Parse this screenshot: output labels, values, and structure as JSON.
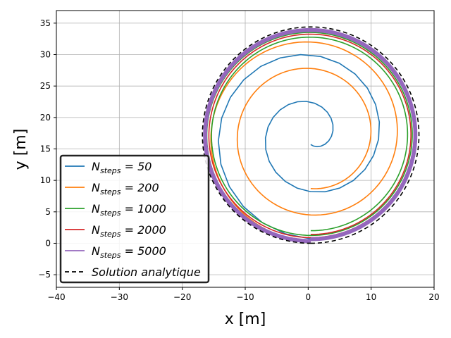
{
  "chart_data": {
    "type": "line",
    "title": "",
    "xlabel": "x [m]",
    "ylabel": "y [m]",
    "xlim": [
      -40,
      20
    ],
    "ylim": [
      -7,
      37
    ],
    "xticks": [
      -40,
      -30,
      -20,
      -10,
      0,
      10,
      20
    ],
    "yticks": [
      -5,
      0,
      5,
      10,
      15,
      20,
      25,
      30,
      35
    ],
    "xtick_labels": [
      "−40",
      "−30",
      "−20",
      "−10",
      "0",
      "10",
      "20"
    ],
    "ytick_labels": [
      "−5",
      "0",
      "5",
      "10",
      "15",
      "20",
      "25",
      "30",
      "35"
    ],
    "grid": true,
    "legend_position": "lower-left",
    "center": [
      0.4,
      17.2
    ],
    "series": [
      {
        "name_main": "N",
        "name_sub": "steps",
        "name_rest": " = 50",
        "color": "#1f77b4",
        "style": "solid",
        "r_start": 1.5,
        "r_end": 16.5,
        "turns": 2,
        "segments": 50
      },
      {
        "name_main": "N",
        "name_sub": "steps",
        "name_rest": " = 200",
        "color": "#ff7f0e",
        "style": "solid",
        "r_start": 8.5,
        "r_end": 16.9,
        "turns": 2,
        "segments": 200
      },
      {
        "name_main": "N",
        "name_sub": "steps",
        "name_rest": " = 1000",
        "color": "#2ca02c",
        "style": "solid",
        "r_start": 15.2,
        "r_end": 16.7,
        "turns": 2,
        "segments": 300
      },
      {
        "name_main": "N",
        "name_sub": "steps",
        "name_rest": " = 2000",
        "color": "#d62728",
        "style": "solid",
        "r_start": 15.8,
        "r_end": 16.8,
        "turns": 2,
        "segments": 300
      },
      {
        "name_main": "N",
        "name_sub": "steps",
        "name_rest": " = 5000",
        "color": "#9467bd",
        "style": "solid",
        "r_start": 16.4,
        "r_end": 17.0,
        "turns": 2,
        "segments": 300
      },
      {
        "name_main": "Solution analytique",
        "name_sub": "",
        "name_rest": "",
        "color": "#000000",
        "style": "dashed",
        "r_start": 17.2,
        "r_end": 17.2,
        "turns": 1,
        "segments": 200
      }
    ]
  }
}
